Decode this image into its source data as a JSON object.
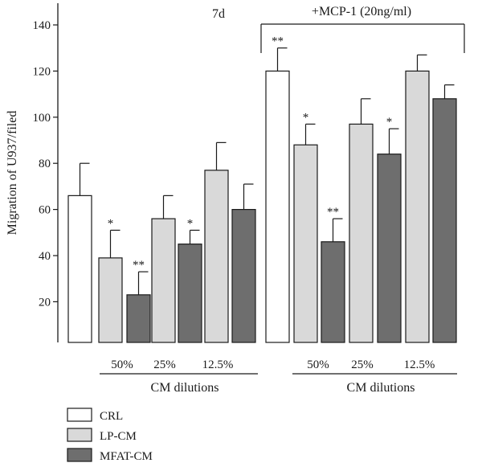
{
  "chart_data": {
    "type": "bar",
    "ylabel": "Migration of U937/filed",
    "ylim": [
      10,
      150
    ],
    "yticks": [
      20,
      40,
      60,
      80,
      100,
      120,
      140
    ],
    "left_panel_label": "7d",
    "right_panel_label": "+MCP-1 (20ng/ml)",
    "dilution_labels": [
      "50%",
      "25%",
      "12.5%"
    ],
    "group_label": "CM dilutions",
    "legend": [
      {
        "name": "CRL",
        "color": "#ffffff"
      },
      {
        "name": "LP-CM",
        "color": "#d9d9d9"
      },
      {
        "name": "MFAT-CM",
        "color": "#6e6e6e"
      }
    ],
    "bars": [
      {
        "panel": "left",
        "series": "CRL",
        "dilution": "",
        "value": 66,
        "error": 14,
        "sig": ""
      },
      {
        "panel": "left",
        "series": "LP-CM",
        "dilution": "50%",
        "value": 39,
        "error": 12,
        "sig": "*"
      },
      {
        "panel": "left",
        "series": "MFAT-CM",
        "dilution": "50%",
        "value": 23,
        "error": 10,
        "sig": "**"
      },
      {
        "panel": "left",
        "series": "LP-CM",
        "dilution": "25%",
        "value": 56,
        "error": 10,
        "sig": ""
      },
      {
        "panel": "left",
        "series": "MFAT-CM",
        "dilution": "25%",
        "value": 45,
        "error": 6,
        "sig": "*"
      },
      {
        "panel": "left",
        "series": "LP-CM",
        "dilution": "12.5%",
        "value": 77,
        "error": 12,
        "sig": ""
      },
      {
        "panel": "left",
        "series": "MFAT-CM",
        "dilution": "12.5%",
        "value": 60,
        "error": 11,
        "sig": ""
      },
      {
        "panel": "right",
        "series": "CRL",
        "dilution": "",
        "value": 120,
        "error": 10,
        "sig": "**"
      },
      {
        "panel": "right",
        "series": "LP-CM",
        "dilution": "50%",
        "value": 88,
        "error": 9,
        "sig": "*"
      },
      {
        "panel": "right",
        "series": "MFAT-CM",
        "dilution": "50%",
        "value": 46,
        "error": 10,
        "sig": "**"
      },
      {
        "panel": "right",
        "series": "LP-CM",
        "dilution": "25%",
        "value": 97,
        "error": 11,
        "sig": ""
      },
      {
        "panel": "right",
        "series": "MFAT-CM",
        "dilution": "25%",
        "value": 84,
        "error": 11,
        "sig": "*"
      },
      {
        "panel": "right",
        "series": "LP-CM",
        "dilution": "12.5%",
        "value": 120,
        "error": 7,
        "sig": ""
      },
      {
        "panel": "right",
        "series": "MFAT-CM",
        "dilution": "12.5%",
        "value": 108,
        "error": 6,
        "sig": ""
      }
    ]
  }
}
